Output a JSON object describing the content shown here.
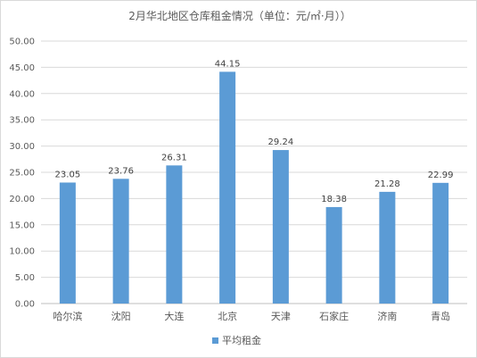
{
  "chart_data": {
    "type": "bar",
    "title": "2月华北地区仓库租金情况（单位：元/㎡·月））",
    "categories": [
      "哈尔滨",
      "沈阳",
      "大连",
      "北京",
      "天津",
      "石家庄",
      "济南",
      "青岛"
    ],
    "series": [
      {
        "name": "平均租金",
        "values": [
          23.05,
          23.76,
          26.31,
          44.15,
          29.24,
          18.38,
          21.28,
          22.99
        ]
      }
    ],
    "data_labels": [
      "23.05",
      "23.76",
      "26.31",
      "44.15",
      "29.24",
      "18.38",
      "21.28",
      "22.99"
    ],
    "ylim": [
      0,
      50
    ],
    "yticks": [
      "0.00",
      "5.00",
      "10.00",
      "15.00",
      "20.00",
      "25.00",
      "30.00",
      "35.00",
      "40.00",
      "45.00",
      "50.00"
    ],
    "grid": true,
    "legend_position": "bottom",
    "bar_color": "#5b9bd5"
  }
}
